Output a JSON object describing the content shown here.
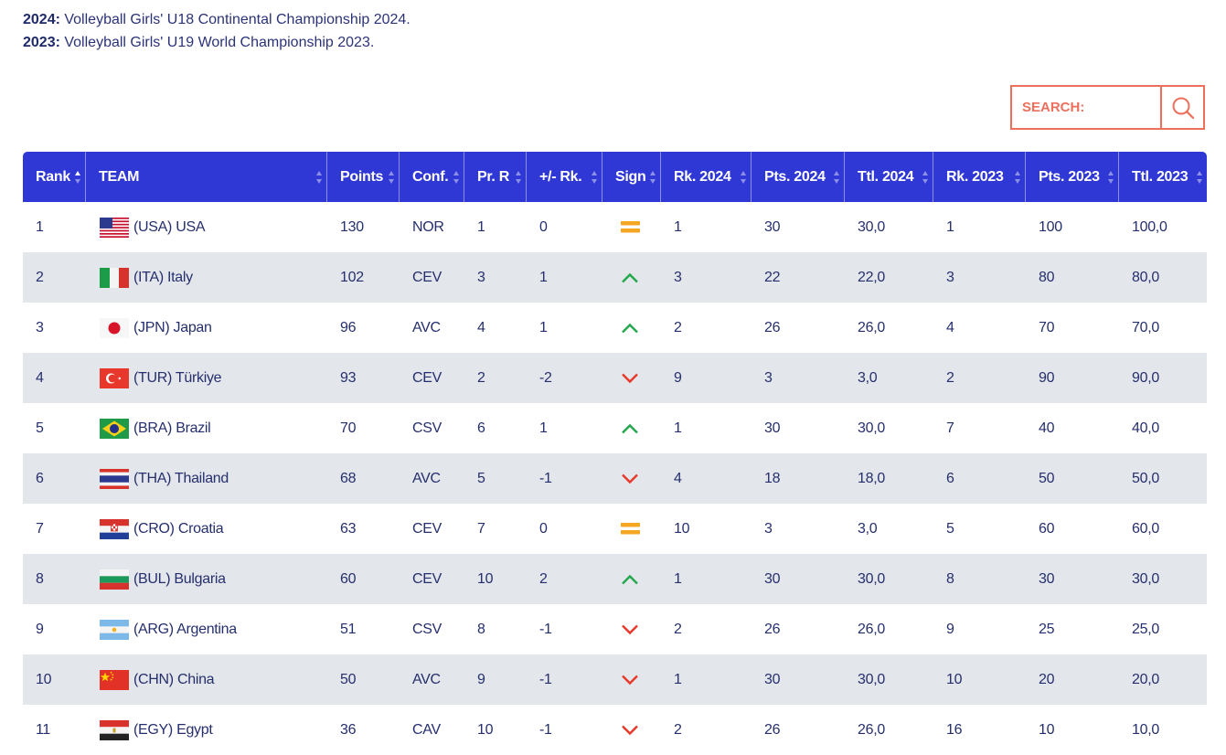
{
  "notes": [
    {
      "year": "2024:",
      "text": " Volleyball Girls' U18 Continental Championship 2024."
    },
    {
      "year": "2023:",
      "text": " Volleyball Girls' U19 World Championship 2023."
    }
  ],
  "search": {
    "placeholder": "SEARCH:",
    "icon": "search-icon"
  },
  "colors": {
    "header": "#2f38d4",
    "accent": "#ee6f5c",
    "up": "#22a84a",
    "down": "#e8382a",
    "same": "#f5a623"
  },
  "columns": [
    "Rank",
    "TEAM",
    "Points",
    "Conf.",
    "Pr. R",
    "+/- Rk.",
    "Sign",
    "Rk. 2024",
    "Pts. 2024",
    "Ttl. 2024",
    "Rk. 2023",
    "Pts. 2023",
    "Ttl. 2023"
  ],
  "rows": [
    {
      "rank": "1",
      "team": "(USA) USA",
      "flag": "usa",
      "points": "130",
      "conf": "NOR",
      "prr": "1",
      "diff": "0",
      "sign": "same",
      "rk24": "1",
      "pts24": "30",
      "ttl24": "30,0",
      "rk23": "1",
      "pts23": "100",
      "ttl23": "100,0"
    },
    {
      "rank": "2",
      "team": "(ITA) Italy",
      "flag": "ita",
      "points": "102",
      "conf": "CEV",
      "prr": "3",
      "diff": "1",
      "sign": "up",
      "rk24": "3",
      "pts24": "22",
      "ttl24": "22,0",
      "rk23": "3",
      "pts23": "80",
      "ttl23": "80,0"
    },
    {
      "rank": "3",
      "team": "(JPN) Japan",
      "flag": "jpn",
      "points": "96",
      "conf": "AVC",
      "prr": "4",
      "diff": "1",
      "sign": "up",
      "rk24": "2",
      "pts24": "26",
      "ttl24": "26,0",
      "rk23": "4",
      "pts23": "70",
      "ttl23": "70,0"
    },
    {
      "rank": "4",
      "team": "(TUR) Türkiye",
      "flag": "tur",
      "points": "93",
      "conf": "CEV",
      "prr": "2",
      "diff": "-2",
      "sign": "down",
      "rk24": "9",
      "pts24": "3",
      "ttl24": "3,0",
      "rk23": "2",
      "pts23": "90",
      "ttl23": "90,0"
    },
    {
      "rank": "5",
      "team": "(BRA) Brazil",
      "flag": "bra",
      "points": "70",
      "conf": "CSV",
      "prr": "6",
      "diff": "1",
      "sign": "up",
      "rk24": "1",
      "pts24": "30",
      "ttl24": "30,0",
      "rk23": "7",
      "pts23": "40",
      "ttl23": "40,0"
    },
    {
      "rank": "6",
      "team": "(THA) Thailand",
      "flag": "tha",
      "points": "68",
      "conf": "AVC",
      "prr": "5",
      "diff": "-1",
      "sign": "down",
      "rk24": "4",
      "pts24": "18",
      "ttl24": "18,0",
      "rk23": "6",
      "pts23": "50",
      "ttl23": "50,0"
    },
    {
      "rank": "7",
      "team": "(CRO) Croatia",
      "flag": "cro",
      "points": "63",
      "conf": "CEV",
      "prr": "7",
      "diff": "0",
      "sign": "same",
      "rk24": "10",
      "pts24": "3",
      "ttl24": "3,0",
      "rk23": "5",
      "pts23": "60",
      "ttl23": "60,0"
    },
    {
      "rank": "8",
      "team": "(BUL) Bulgaria",
      "flag": "bul",
      "points": "60",
      "conf": "CEV",
      "prr": "10",
      "diff": "2",
      "sign": "up",
      "rk24": "1",
      "pts24": "30",
      "ttl24": "30,0",
      "rk23": "8",
      "pts23": "30",
      "ttl23": "30,0"
    },
    {
      "rank": "9",
      "team": "(ARG) Argentina",
      "flag": "arg",
      "points": "51",
      "conf": "CSV",
      "prr": "8",
      "diff": "-1",
      "sign": "down",
      "rk24": "2",
      "pts24": "26",
      "ttl24": "26,0",
      "rk23": "9",
      "pts23": "25",
      "ttl23": "25,0"
    },
    {
      "rank": "10",
      "team": "(CHN) China",
      "flag": "chn",
      "points": "50",
      "conf": "AVC",
      "prr": "9",
      "diff": "-1",
      "sign": "down",
      "rk24": "1",
      "pts24": "30",
      "ttl24": "30,0",
      "rk23": "10",
      "pts23": "20",
      "ttl23": "20,0"
    },
    {
      "rank": "11",
      "team": "(EGY) Egypt",
      "flag": "egy",
      "points": "36",
      "conf": "CAV",
      "prr": "10",
      "diff": "-1",
      "sign": "down",
      "rk24": "2",
      "pts24": "26",
      "ttl24": "26,0",
      "rk23": "16",
      "pts23": "10",
      "ttl23": "10,0"
    }
  ]
}
